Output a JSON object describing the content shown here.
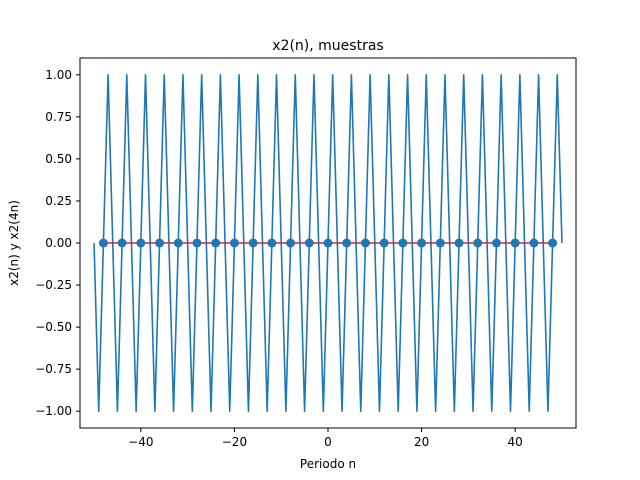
{
  "chart_data": {
    "type": "line",
    "title": "x2(n), muestras",
    "xlabel": "Periodo n",
    "ylabel": "x2(n) y x2(4n)",
    "xlim": [
      -53,
      53
    ],
    "ylim": [
      -1.1,
      1.1
    ],
    "xticks": [
      -40,
      -20,
      0,
      20,
      40
    ],
    "xtick_labels": [
      "−40",
      "−20",
      "0",
      "20",
      "40"
    ],
    "yticks": [
      -1.0,
      -0.75,
      -0.5,
      -0.25,
      0.0,
      0.25,
      0.5,
      0.75,
      1.0
    ],
    "ytick_labels": [
      "−1.00",
      "−0.75",
      "−0.50",
      "−0.25",
      "0.00",
      "0.25",
      "0.50",
      "0.75",
      "1.00"
    ],
    "grid": false,
    "series": [
      {
        "color": "#1f77b4",
        "kind": "line",
        "x": [
          -50,
          -49,
          -48,
          -47,
          -46,
          -45,
          -44,
          -43,
          -42,
          -41,
          -40,
          -39,
          -38,
          -37,
          -36,
          -35,
          -34,
          -33,
          -32,
          -31,
          -30,
          -29,
          -28,
          -27,
          -26,
          -25,
          -24,
          -23,
          -22,
          -21,
          -20,
          -19,
          -18,
          -17,
          -16,
          -15,
          -14,
          -13,
          -12,
          -11,
          -10,
          -9,
          -8,
          -7,
          -6,
          -5,
          -4,
          -3,
          -2,
          -1,
          0,
          1,
          2,
          3,
          4,
          5,
          6,
          7,
          8,
          9,
          10,
          11,
          12,
          13,
          14,
          15,
          16,
          17,
          18,
          19,
          20,
          21,
          22,
          23,
          24,
          25,
          26,
          27,
          28,
          29,
          30,
          31,
          32,
          33,
          34,
          35,
          36,
          37,
          38,
          39,
          40,
          41,
          42,
          43,
          44,
          45,
          46,
          47,
          48,
          49,
          50
        ],
        "y": [
          0,
          -1,
          0,
          1,
          0,
          -1,
          0,
          1,
          0,
          -1,
          0,
          1,
          0,
          -1,
          0,
          1,
          0,
          -1,
          0,
          1,
          0,
          -1,
          0,
          1,
          0,
          -1,
          0,
          1,
          0,
          -1,
          0,
          1,
          0,
          -1,
          0,
          1,
          0,
          -1,
          0,
          1,
          0,
          -1,
          0,
          1,
          0,
          -1,
          0,
          1,
          0,
          -1,
          0,
          1,
          0,
          -1,
          0,
          1,
          0,
          -1,
          0,
          1,
          0,
          -1,
          0,
          1,
          0,
          -1,
          0,
          1,
          0,
          -1,
          0,
          1,
          0,
          -1,
          0,
          1,
          0,
          -1,
          0,
          1,
          0,
          -1,
          0,
          1,
          0,
          -1,
          0,
          1,
          0,
          -1,
          0,
          1,
          0,
          -1,
          0,
          1,
          0,
          -1,
          0,
          1,
          0
        ]
      },
      {
        "color": "#1f77b4",
        "stem_color": "#d62728",
        "kind": "stem",
        "x": [
          -48,
          -44,
          -40,
          -36,
          -32,
          -28,
          -24,
          -20,
          -16,
          -12,
          -8,
          -4,
          0,
          4,
          8,
          12,
          16,
          20,
          24,
          28,
          32,
          36,
          40,
          44,
          48
        ],
        "y": [
          0,
          0,
          0,
          0,
          0,
          0,
          0,
          0,
          0,
          0,
          0,
          0,
          0,
          0,
          0,
          0,
          0,
          0,
          0,
          0,
          0,
          0,
          0,
          0,
          0
        ]
      }
    ]
  }
}
